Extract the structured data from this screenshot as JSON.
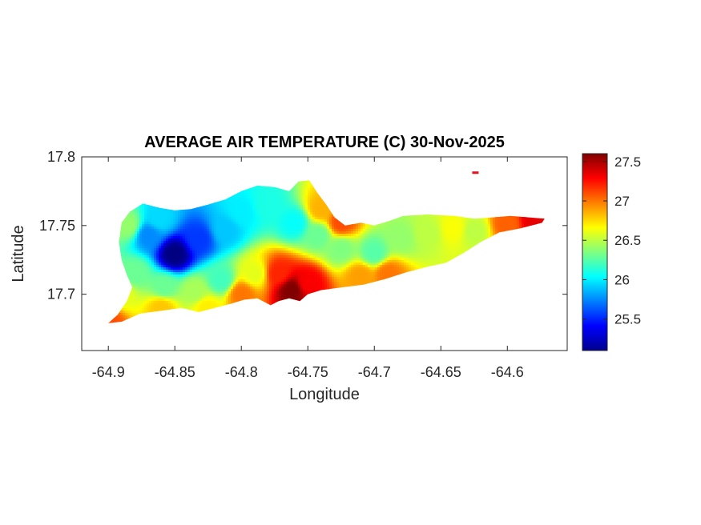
{
  "chart_data": {
    "type": "heatmap",
    "title": "AVERAGE AIR TEMPERATURE (C) 30-Nov-2025",
    "xlabel": "Longitude",
    "ylabel": "Latitude",
    "xlim": [
      -64.92,
      -64.555
    ],
    "ylim": [
      17.659,
      17.8
    ],
    "x_ticks": [
      {
        "value": -64.9,
        "label": "-64.9"
      },
      {
        "value": -64.85,
        "label": "-64.85"
      },
      {
        "value": -64.8,
        "label": "-64.8"
      },
      {
        "value": -64.75,
        "label": "-64.75"
      },
      {
        "value": -64.7,
        "label": "-64.7"
      },
      {
        "value": -64.65,
        "label": "-64.65"
      },
      {
        "value": -64.6,
        "label": "-64.6"
      }
    ],
    "y_ticks": [
      {
        "value": 17.7,
        "label": "17.7"
      },
      {
        "value": 17.75,
        "label": "17.75"
      },
      {
        "value": 17.8,
        "label": "17.8"
      }
    ],
    "colormap": "jet",
    "colorbar": {
      "range": [
        25.1,
        27.6
      ],
      "ticks": [
        {
          "value": 25.5,
          "label": "25.5"
        },
        {
          "value": 26,
          "label": "26"
        },
        {
          "value": 26.5,
          "label": "26.5"
        },
        {
          "value": 27,
          "label": "27"
        },
        {
          "value": 27.5,
          "label": "27.5"
        }
      ]
    },
    "land_outline": [
      [
        -64.9,
        17.679
      ],
      [
        -64.893,
        17.685
      ],
      [
        -64.886,
        17.695
      ],
      [
        -64.882,
        17.705
      ],
      [
        -64.886,
        17.714
      ],
      [
        -64.89,
        17.725
      ],
      [
        -64.892,
        17.738
      ],
      [
        -64.89,
        17.752
      ],
      [
        -64.884,
        17.76
      ],
      [
        -64.874,
        17.766
      ],
      [
        -64.862,
        17.763
      ],
      [
        -64.85,
        17.761
      ],
      [
        -64.838,
        17.762
      ],
      [
        -64.826,
        17.765
      ],
      [
        -64.812,
        17.769
      ],
      [
        -64.8,
        17.775
      ],
      [
        -64.788,
        17.779
      ],
      [
        -64.775,
        17.778
      ],
      [
        -64.764,
        17.775
      ],
      [
        -64.757,
        17.782
      ],
      [
        -64.749,
        17.783
      ],
      [
        -64.743,
        17.774
      ],
      [
        -64.736,
        17.765
      ],
      [
        -64.73,
        17.756
      ],
      [
        -64.722,
        17.75
      ],
      [
        -64.71,
        17.752
      ],
      [
        -64.7,
        17.75
      ],
      [
        -64.69,
        17.753
      ],
      [
        -64.678,
        17.757
      ],
      [
        -64.66,
        17.758
      ],
      [
        -64.64,
        17.757
      ],
      [
        -64.625,
        17.755
      ],
      [
        -64.61,
        17.756
      ],
      [
        -64.598,
        17.757
      ],
      [
        -64.585,
        17.756
      ],
      [
        -64.572,
        17.755
      ],
      [
        -64.574,
        17.752
      ],
      [
        -64.59,
        17.748
      ],
      [
        -64.606,
        17.745
      ],
      [
        -64.62,
        17.738
      ],
      [
        -64.633,
        17.73
      ],
      [
        -64.646,
        17.723
      ],
      [
        -64.66,
        17.72
      ],
      [
        -64.676,
        17.716
      ],
      [
        -64.692,
        17.711
      ],
      [
        -64.708,
        17.707
      ],
      [
        -64.724,
        17.705
      ],
      [
        -64.74,
        17.703
      ],
      [
        -64.75,
        17.7
      ],
      [
        -64.756,
        17.695
      ],
      [
        -64.764,
        17.697
      ],
      [
        -64.772,
        17.695
      ],
      [
        -64.778,
        17.692
      ],
      [
        -64.788,
        17.697
      ],
      [
        -64.798,
        17.696
      ],
      [
        -64.808,
        17.693
      ],
      [
        -64.82,
        17.69
      ],
      [
        -64.832,
        17.687
      ],
      [
        -64.845,
        17.69
      ],
      [
        -64.86,
        17.688
      ],
      [
        -64.876,
        17.686
      ],
      [
        -64.89,
        17.68
      ]
    ],
    "samples": [
      {
        "lon": -64.85,
        "lat": 17.729,
        "value": 25.1
      },
      {
        "lon": -64.832,
        "lat": 17.74,
        "value": 25.55
      },
      {
        "lon": -64.87,
        "lat": 17.743,
        "value": 25.75
      },
      {
        "lon": -64.862,
        "lat": 17.755,
        "value": 25.95
      },
      {
        "lon": -64.812,
        "lat": 17.747,
        "value": 25.9
      },
      {
        "lon": -64.8,
        "lat": 17.76,
        "value": 26.0
      },
      {
        "lon": -64.78,
        "lat": 17.765,
        "value": 26.1
      },
      {
        "lon": -64.76,
        "lat": 17.752,
        "value": 26.05
      },
      {
        "lon": -64.742,
        "lat": 17.743,
        "value": 26.3
      },
      {
        "lon": -64.725,
        "lat": 17.733,
        "value": 26.35
      },
      {
        "lon": -64.7,
        "lat": 17.73,
        "value": 26.25
      },
      {
        "lon": -64.68,
        "lat": 17.741,
        "value": 26.4
      },
      {
        "lon": -64.66,
        "lat": 17.745,
        "value": 26.5
      },
      {
        "lon": -64.64,
        "lat": 17.748,
        "value": 26.65
      },
      {
        "lon": -64.625,
        "lat": 17.746,
        "value": 26.5
      },
      {
        "lon": -64.6,
        "lat": 17.751,
        "value": 27.05
      },
      {
        "lon": -64.58,
        "lat": 17.754,
        "value": 27.35
      },
      {
        "lon": -64.89,
        "lat": 17.7,
        "value": 26.6
      },
      {
        "lon": -64.88,
        "lat": 17.715,
        "value": 26.3
      },
      {
        "lon": -64.858,
        "lat": 17.705,
        "value": 26.3
      },
      {
        "lon": -64.835,
        "lat": 17.702,
        "value": 26.45
      },
      {
        "lon": -64.815,
        "lat": 17.71,
        "value": 26.2
      },
      {
        "lon": -64.8,
        "lat": 17.7,
        "value": 27.0
      },
      {
        "lon": -64.79,
        "lat": 17.715,
        "value": 26.6
      },
      {
        "lon": -64.772,
        "lat": 17.715,
        "value": 27.2
      },
      {
        "lon": -64.762,
        "lat": 17.703,
        "value": 27.6
      },
      {
        "lon": -64.75,
        "lat": 17.708,
        "value": 27.3
      },
      {
        "lon": -64.74,
        "lat": 17.762,
        "value": 26.85
      },
      {
        "lon": -64.725,
        "lat": 17.752,
        "value": 27.1
      },
      {
        "lon": -64.71,
        "lat": 17.713,
        "value": 26.9
      },
      {
        "lon": -64.69,
        "lat": 17.715,
        "value": 27.0
      },
      {
        "lon": -64.9,
        "lat": 17.68,
        "value": 27.1
      },
      {
        "lon": -64.86,
        "lat": 17.69,
        "value": 26.8
      },
      {
        "lon": -64.826,
        "lat": 17.69,
        "value": 26.7
      },
      {
        "lon": -64.885,
        "lat": 17.75,
        "value": 26.4
      }
    ],
    "islets": [
      {
        "lon": -64.624,
        "lat": 17.7885
      }
    ]
  }
}
